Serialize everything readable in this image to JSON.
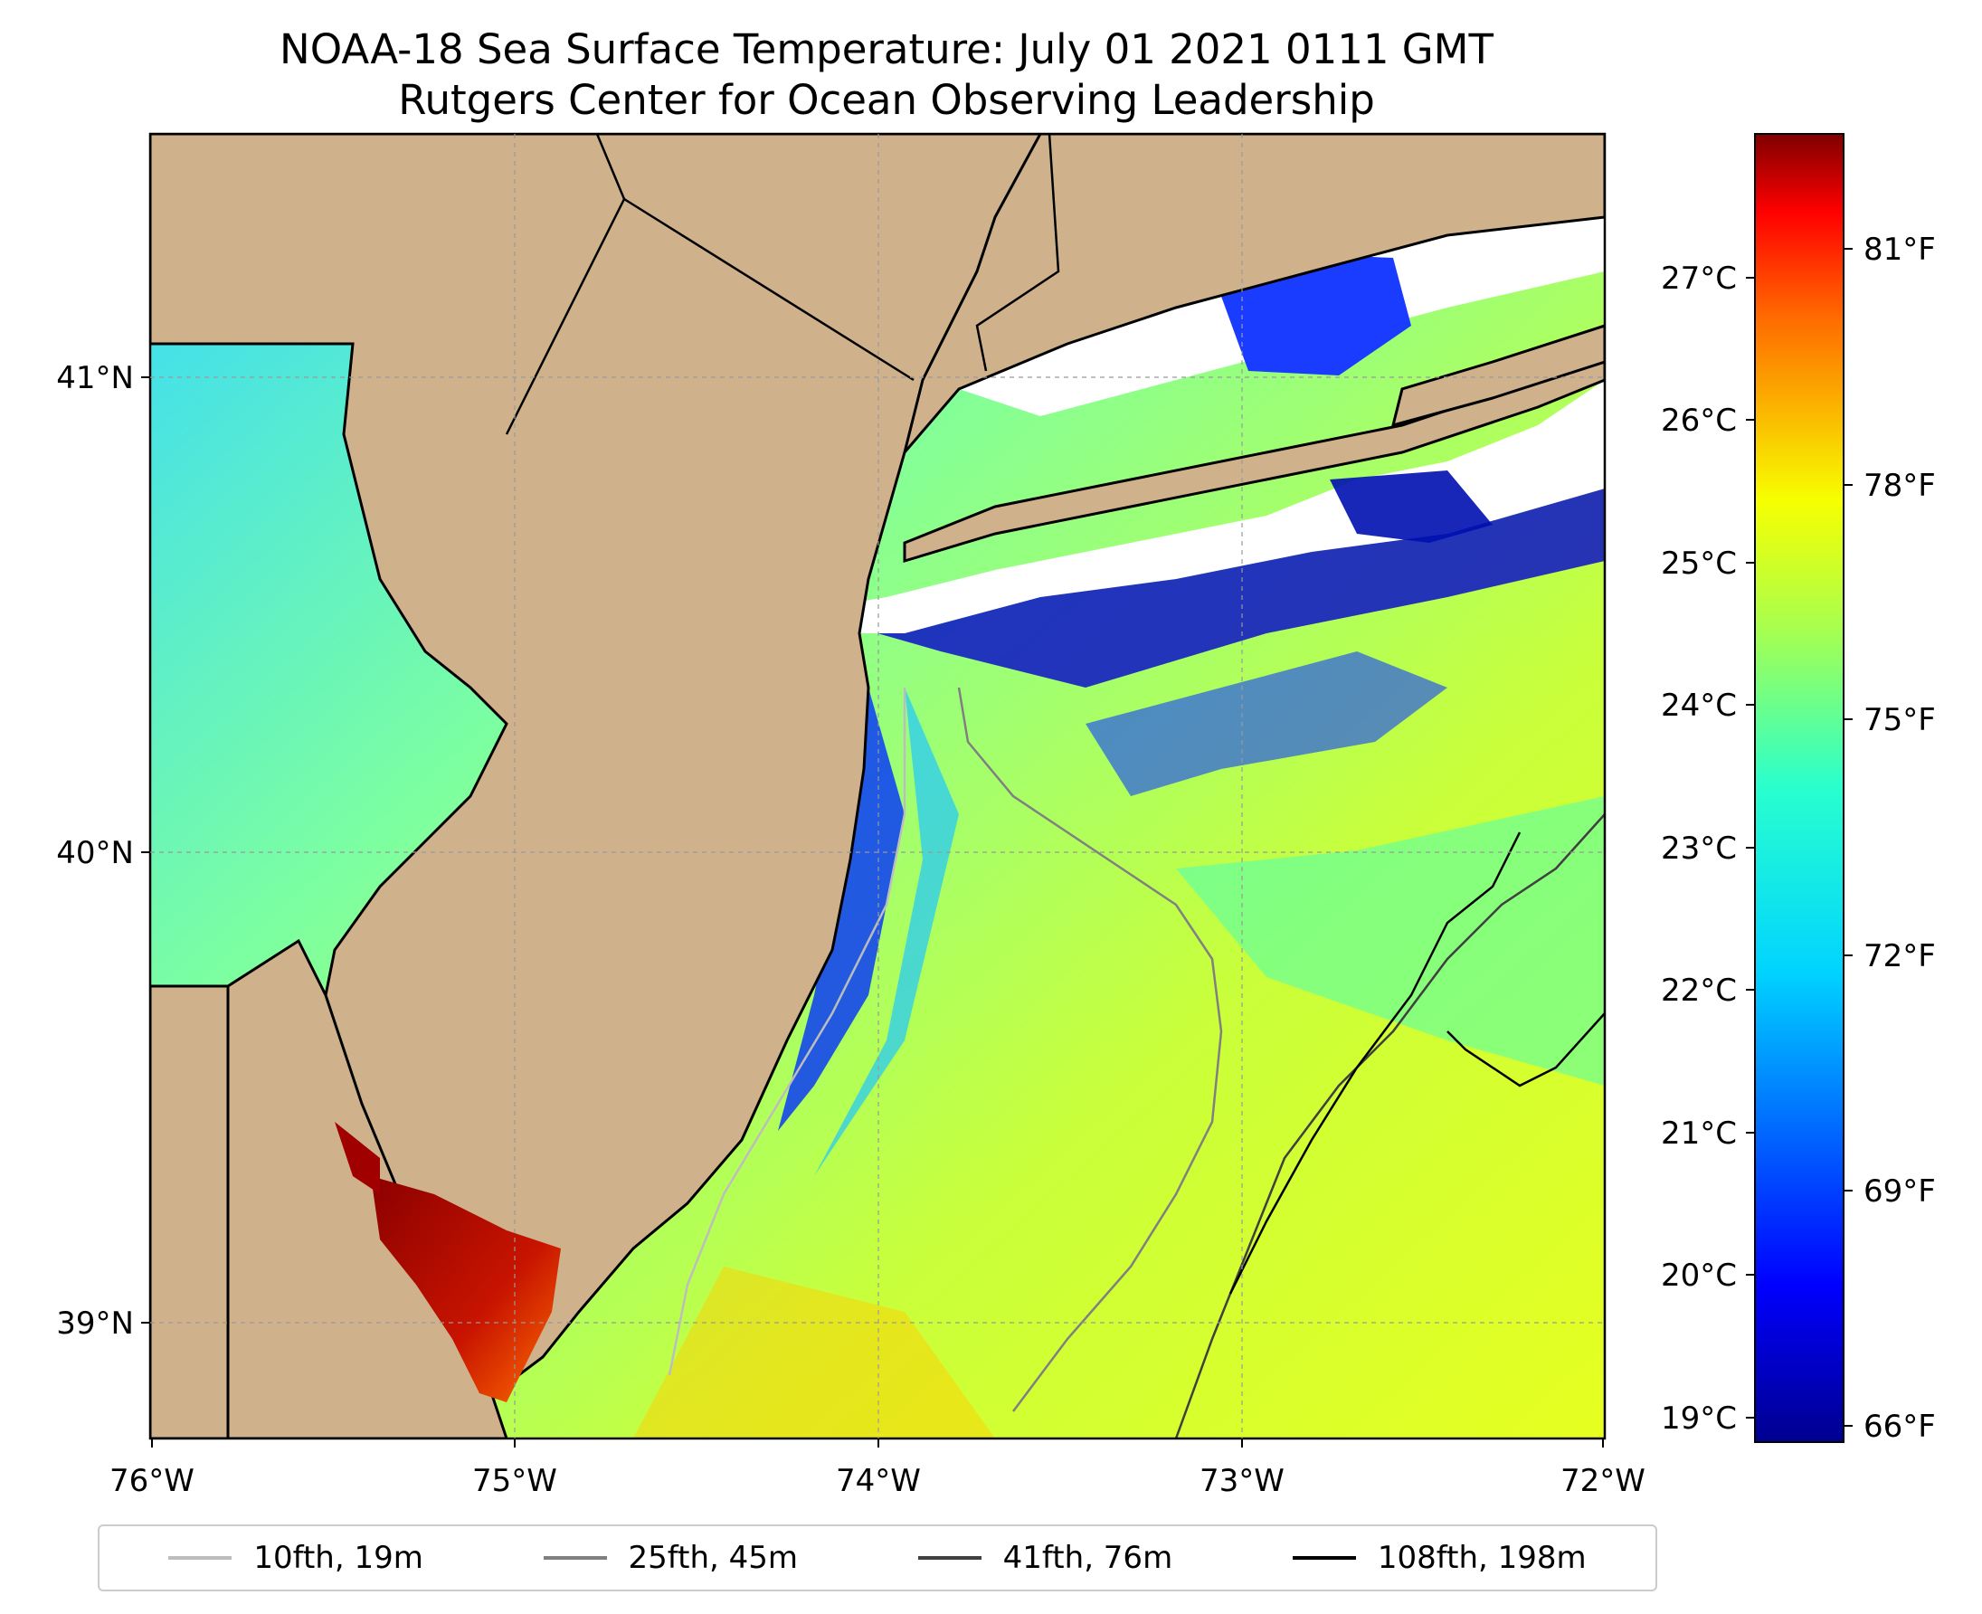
{
  "title": {
    "line1": "NOAA-18 Sea Surface Temperature: July 01 2021 0111 GMT",
    "line2": "Rutgers Center for Ocean Observing Leadership"
  },
  "map": {
    "x_ticks": [
      "76°W",
      "75°W",
      "74°W",
      "73°W",
      "72°W"
    ],
    "y_ticks": [
      "41°N",
      "40°N",
      "39°N"
    ],
    "land_color": "#cfb28c",
    "ocean_nodata_color": "#ffffff"
  },
  "colorbar": {
    "celsius_ticks": [
      "27°C",
      "26°C",
      "25°C",
      "24°C",
      "23°C",
      "22°C",
      "21°C",
      "20°C",
      "19°C"
    ],
    "fahrenheit_ticks": [
      "81°F",
      "78°F",
      "75°F",
      "72°F",
      "69°F",
      "66°F"
    ],
    "colormap": "jet"
  },
  "legend": {
    "items": [
      {
        "label": "10fth, 19m",
        "color": "#bdbdbd"
      },
      {
        "label": "25fth, 45m",
        "color": "#808080"
      },
      {
        "label": "41fth, 76m",
        "color": "#404040"
      },
      {
        "label": "108fth, 198m",
        "color": "#000000"
      }
    ]
  }
}
